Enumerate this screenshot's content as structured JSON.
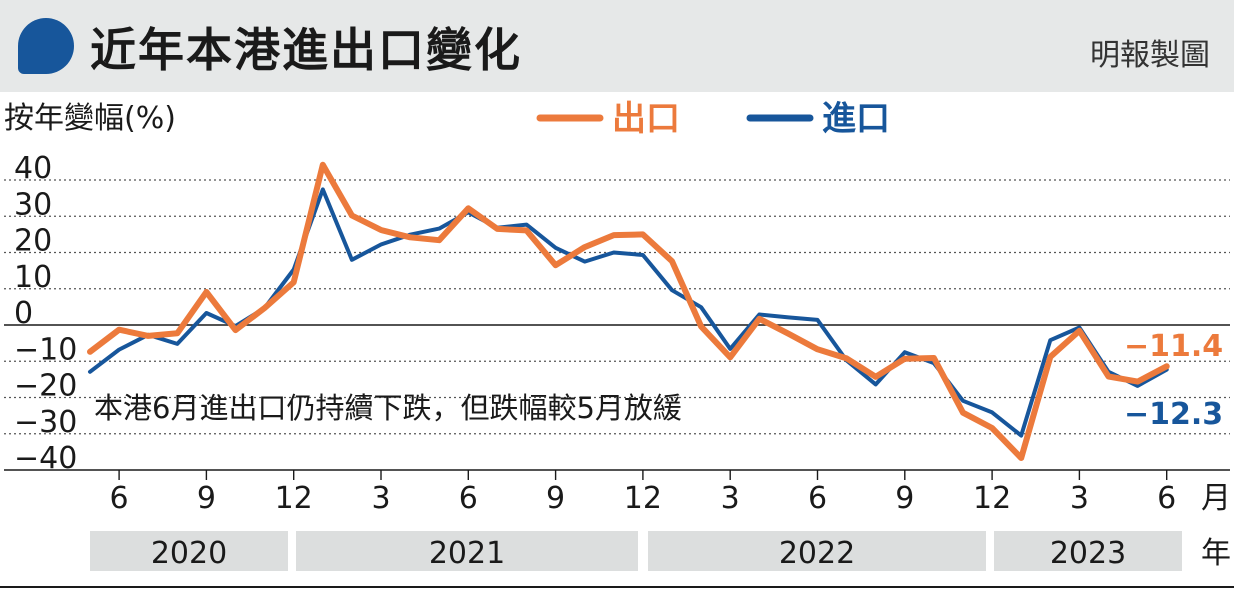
{
  "header": {
    "title": "近年本港進出口變化",
    "credit": "明報製圖"
  },
  "chart_data": {
    "type": "line",
    "ylabel": "按年變幅(%)",
    "ylim": [
      -40,
      40
    ],
    "yticks": [
      40,
      30,
      20,
      10,
      0,
      -10,
      -20,
      -30,
      -40
    ],
    "x_months": [
      5,
      6,
      7,
      8,
      9,
      10,
      11,
      12,
      1,
      2,
      3,
      4,
      5,
      6,
      7,
      8,
      9,
      10,
      11,
      12,
      1,
      2,
      3,
      4,
      5,
      6,
      7,
      8,
      9,
      10,
      11,
      12,
      1,
      2,
      3,
      4,
      5,
      6
    ],
    "x_tick_labels": [
      "6",
      "9",
      "12",
      "3",
      "6",
      "9",
      "12",
      "3",
      "6",
      "9",
      "12",
      "3",
      "6"
    ],
    "x_unit": "月",
    "years": [
      "2020",
      "2021",
      "2022",
      "2023"
    ],
    "year_unit": "年",
    "legend": {
      "position": "top-center"
    },
    "series": [
      {
        "name": "出口",
        "color": "#ec7a3c",
        "values": [
          -7.4,
          -1.3,
          -3,
          -2.3,
          9.1,
          -1.4,
          4.7,
          11.8,
          44.2,
          30.2,
          26.2,
          24.2,
          23.4,
          32.2,
          26.5,
          26.1,
          16.5,
          21.5,
          24.8,
          25,
          17.6,
          -0.4,
          -8.9,
          1.7,
          -2.4,
          -6.7,
          -9.2,
          -14.3,
          -9.3,
          -9.1,
          -24.2,
          -28.4,
          -36.7,
          -8.8,
          -1.6,
          -14.2,
          -15.6,
          -11.4
        ]
      },
      {
        "name": "進口",
        "color": "#17569b",
        "values": [
          -12.9,
          -6.8,
          -2.7,
          -5.2,
          3.3,
          -0.3,
          4.7,
          15.3,
          37.4,
          18,
          22.2,
          24.9,
          26.6,
          31.1,
          26.8,
          27.7,
          21.3,
          17.5,
          20,
          19.3,
          9.6,
          4.9,
          -6.6,
          2.9,
          2.1,
          1.4,
          -9.8,
          -16.4,
          -7.5,
          -10.5,
          -20.9,
          -24.1,
          -30.5,
          -4.2,
          -0.7,
          -12.9,
          -16.8,
          -12.3
        ]
      }
    ],
    "end_labels": {
      "exports": "−11.4",
      "imports": "−12.3"
    },
    "annotation": "本港6月進出口仍持續下跌，但跌幅較5月放緩"
  }
}
